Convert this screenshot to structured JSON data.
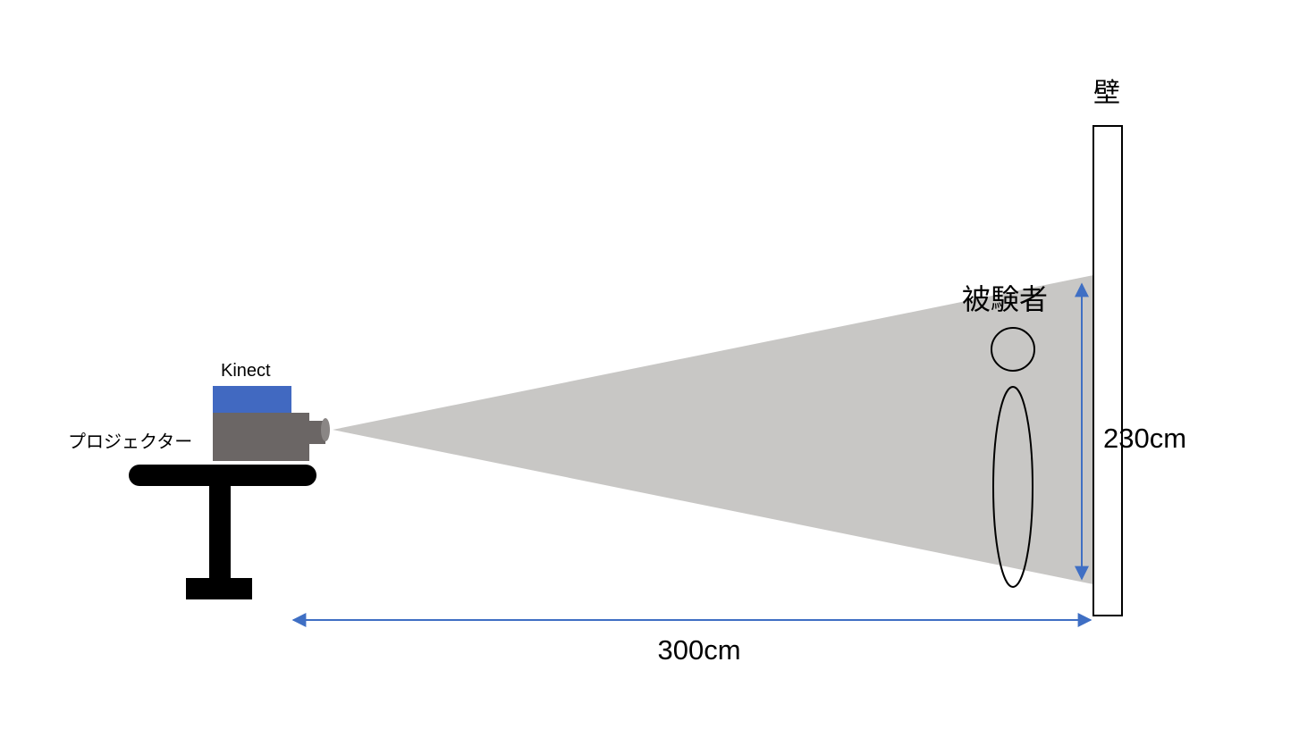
{
  "labels": {
    "wall": "壁",
    "subject": "被験者",
    "kinect": "Kinect",
    "projector": "プロジェクター",
    "distance": "300cm",
    "height": "230cm"
  },
  "colors": {
    "beam": "#c8c7c5",
    "kinect": "#4169c1",
    "projector": "#6b6665",
    "lens": "#8a8685",
    "table": "#000000",
    "dimension_arrow": "#3f6fc4",
    "outline": "#000000"
  }
}
